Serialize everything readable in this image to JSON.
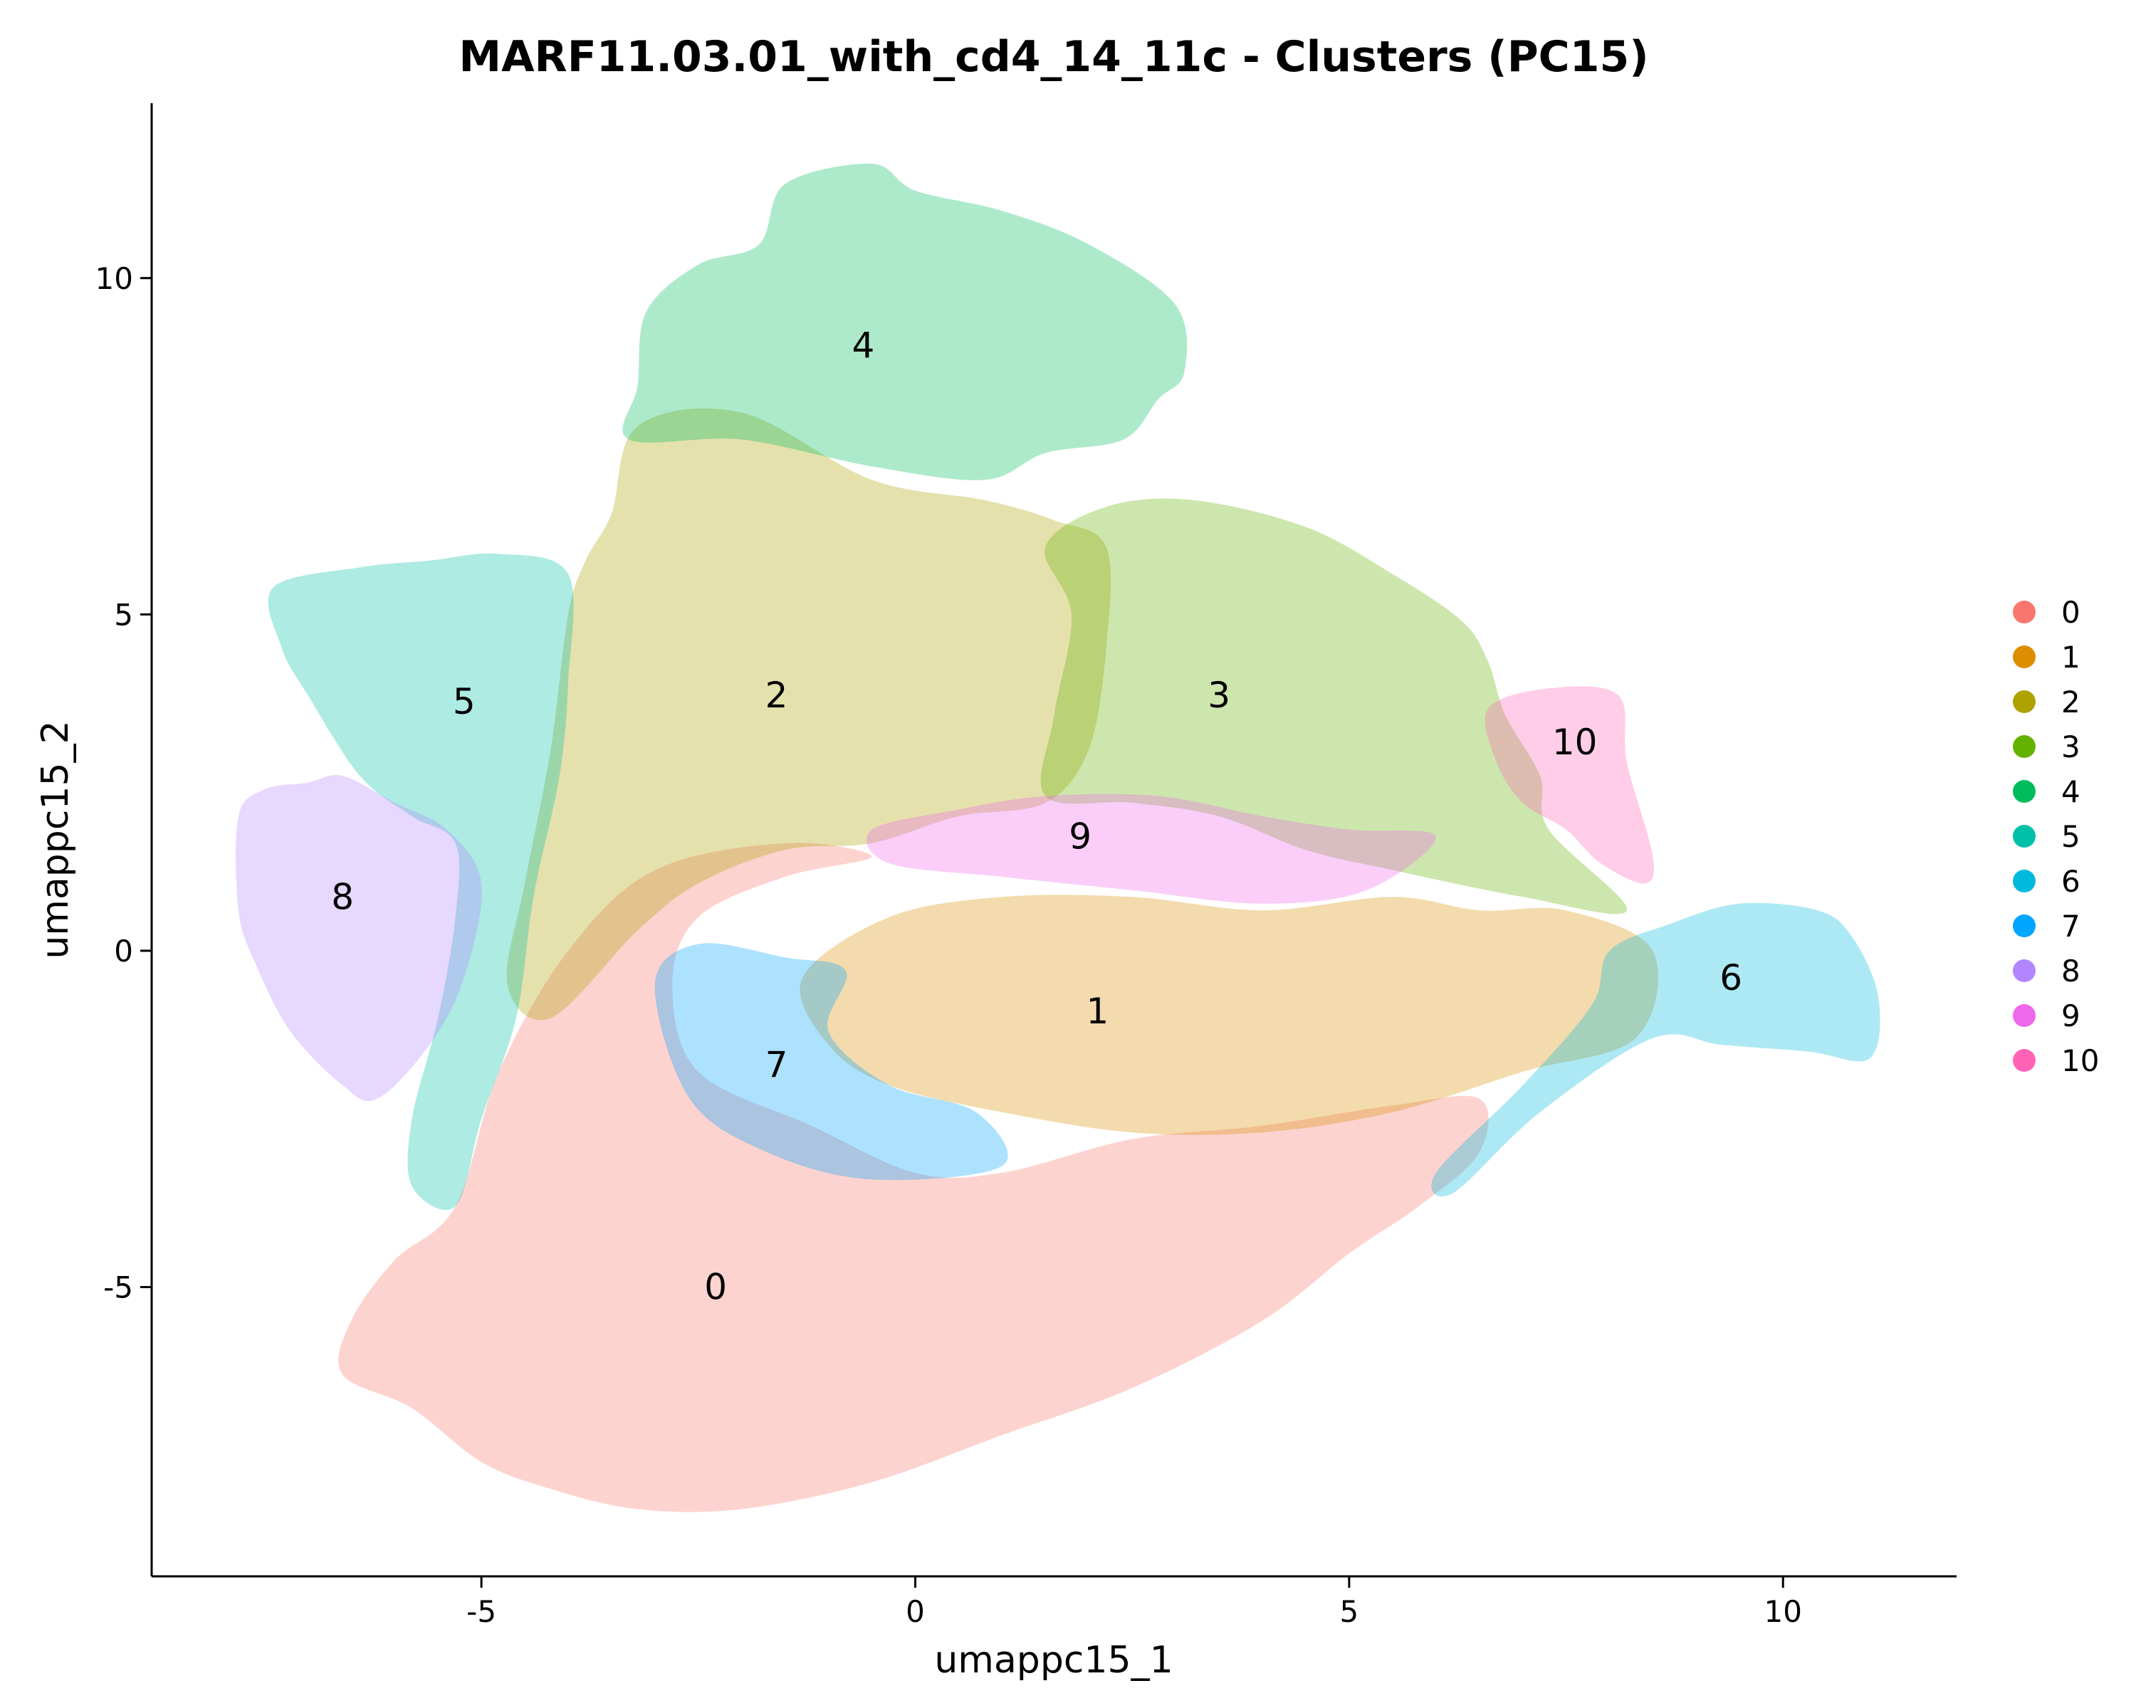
{
  "chart_data": {
    "type": "scatter",
    "title": "MARF11.03.01_with_cd4_14_11c - Clusters (PC15)",
    "xlabel": "umappc15_1",
    "ylabel": "umappc15_2",
    "xlim": [
      -8.8,
      12.0
    ],
    "ylim": [
      -9.3,
      12.6
    ],
    "x_ticks": [
      -5,
      0,
      5,
      10
    ],
    "x_tick_labels": [
      "-5",
      "0",
      "5",
      "10"
    ],
    "y_ticks": [
      -5,
      0,
      5,
      10
    ],
    "y_tick_labels": [
      "-5",
      "0",
      "5",
      "10"
    ],
    "grid": false,
    "legend_position": "right",
    "point_alpha": 0.3,
    "series": [
      {
        "name": "0",
        "color": "#F8766D",
        "label_position": [
          -2.3,
          -5.0
        ],
        "label": "0",
        "outline": [
          [
            -6.5,
            -5.5
          ],
          [
            -6.6,
            -6.3
          ],
          [
            -5.8,
            -6.8
          ],
          [
            -5.0,
            -7.6
          ],
          [
            -4.2,
            -8.0
          ],
          [
            -3.2,
            -8.3
          ],
          [
            -2.0,
            -8.3
          ],
          [
            -0.5,
            -7.9
          ],
          [
            1.0,
            -7.2
          ],
          [
            2.5,
            -6.5
          ],
          [
            4.0,
            -5.5
          ],
          [
            5.0,
            -4.5
          ],
          [
            5.8,
            -3.8
          ],
          [
            6.5,
            -3.0
          ],
          [
            6.5,
            -2.2
          ],
          [
            5.5,
            -2.3
          ],
          [
            4.0,
            -2.6
          ],
          [
            2.5,
            -2.8
          ],
          [
            1.0,
            -3.3
          ],
          [
            0.0,
            -3.3
          ],
          [
            -1.2,
            -2.6
          ],
          [
            -2.5,
            -1.8
          ],
          [
            -2.8,
            -0.5
          ],
          [
            -2.5,
            0.5
          ],
          [
            -1.5,
            1.1
          ],
          [
            -0.5,
            1.4
          ],
          [
            -1.5,
            1.6
          ],
          [
            -3.0,
            1.2
          ],
          [
            -4.0,
            0.0
          ],
          [
            -4.8,
            -1.8
          ],
          [
            -5.3,
            -3.8
          ],
          [
            -6.0,
            -4.6
          ]
        ]
      },
      {
        "name": "1",
        "color": "#DB8E00",
        "label_position": [
          2.1,
          -0.9
        ],
        "label": "1",
        "outline": [
          [
            -1.3,
            -0.4
          ],
          [
            -0.3,
            0.5
          ],
          [
            1.0,
            0.8
          ],
          [
            2.5,
            0.8
          ],
          [
            4.0,
            0.6
          ],
          [
            5.5,
            0.8
          ],
          [
            6.5,
            0.6
          ],
          [
            7.5,
            0.6
          ],
          [
            8.5,
            0.0
          ],
          [
            8.3,
            -1.3
          ],
          [
            7.0,
            -1.8
          ],
          [
            5.5,
            -2.4
          ],
          [
            4.0,
            -2.7
          ],
          [
            2.5,
            -2.7
          ],
          [
            1.0,
            -2.4
          ],
          [
            -0.3,
            -2.0
          ],
          [
            -1.0,
            -1.4
          ]
        ]
      },
      {
        "name": "2",
        "color": "#AEA200",
        "label_position": [
          -1.6,
          3.8
        ],
        "label": "2",
        "outline": [
          [
            -3.5,
            6.5
          ],
          [
            -3.2,
            7.8
          ],
          [
            -2.0,
            8.0
          ],
          [
            -0.5,
            7.0
          ],
          [
            0.8,
            6.7
          ],
          [
            1.6,
            6.4
          ],
          [
            2.2,
            6.0
          ],
          [
            2.2,
            4.5
          ],
          [
            2.0,
            3.0
          ],
          [
            1.5,
            2.2
          ],
          [
            0.5,
            2.0
          ],
          [
            -0.5,
            1.6
          ],
          [
            -1.5,
            1.5
          ],
          [
            -2.5,
            1.0
          ],
          [
            -3.2,
            0.3
          ],
          [
            -4.2,
            -1.0
          ],
          [
            -4.7,
            -0.5
          ],
          [
            -4.5,
            1.0
          ],
          [
            -4.2,
            3.0
          ],
          [
            -4.0,
            5.0
          ],
          [
            -3.8,
            5.8
          ]
        ]
      },
      {
        "name": "3",
        "color": "#64B200",
        "label_position": [
          3.5,
          3.8
        ],
        "label": "3",
        "outline": [
          [
            1.5,
            6.0
          ],
          [
            2.2,
            6.6
          ],
          [
            3.2,
            6.7
          ],
          [
            4.5,
            6.3
          ],
          [
            5.5,
            5.6
          ],
          [
            6.3,
            4.9
          ],
          [
            6.6,
            4.3
          ],
          [
            6.8,
            3.5
          ],
          [
            7.2,
            2.6
          ],
          [
            7.3,
            1.8
          ],
          [
            8.2,
            0.6
          ],
          [
            7.0,
            0.8
          ],
          [
            5.5,
            1.2
          ],
          [
            4.5,
            1.5
          ],
          [
            3.5,
            2.0
          ],
          [
            2.5,
            2.2
          ],
          [
            1.5,
            2.3
          ],
          [
            1.6,
            3.5
          ],
          [
            1.8,
            5.0
          ]
        ]
      },
      {
        "name": "4",
        "color": "#00BD5C",
        "label_position": [
          -0.6,
          9.0
        ],
        "label": "4",
        "outline": [
          [
            -3.1,
            9.5
          ],
          [
            -3.2,
            8.4
          ],
          [
            -3.3,
            7.6
          ],
          [
            -2.0,
            7.6
          ],
          [
            -0.5,
            7.2
          ],
          [
            0.8,
            7.0
          ],
          [
            1.5,
            7.4
          ],
          [
            2.4,
            7.6
          ],
          [
            2.8,
            8.2
          ],
          [
            3.1,
            8.6
          ],
          [
            3.0,
            9.6
          ],
          [
            2.0,
            10.5
          ],
          [
            1.0,
            11.0
          ],
          [
            0.0,
            11.3
          ],
          [
            -0.5,
            11.7
          ],
          [
            -1.5,
            11.4
          ],
          [
            -1.8,
            10.5
          ],
          [
            -2.5,
            10.2
          ]
        ]
      },
      {
        "name": "5",
        "color": "#00C1A7",
        "label_position": [
          -5.2,
          3.7
        ],
        "label": "5",
        "outline": [
          [
            -7.4,
            5.4
          ],
          [
            -7.3,
            4.5
          ],
          [
            -7.0,
            3.8
          ],
          [
            -6.4,
            2.6
          ],
          [
            -5.8,
            2.0
          ],
          [
            -5.3,
            1.6
          ],
          [
            -5.3,
            0.5
          ],
          [
            -5.5,
            -1.0
          ],
          [
            -5.8,
            -2.5
          ],
          [
            -5.8,
            -3.5
          ],
          [
            -5.3,
            -3.8
          ],
          [
            -5.0,
            -2.5
          ],
          [
            -4.6,
            -1.0
          ],
          [
            -4.4,
            0.8
          ],
          [
            -4.1,
            2.6
          ],
          [
            -4.0,
            4.0
          ],
          [
            -4.0,
            5.6
          ],
          [
            -4.8,
            5.9
          ],
          [
            -5.6,
            5.8
          ],
          [
            -6.4,
            5.7
          ]
        ]
      },
      {
        "name": "6",
        "color": "#00BADE",
        "label_position": [
          9.4,
          -0.4
        ],
        "label": "6",
        "outline": [
          [
            8.0,
            0.0
          ],
          [
            8.7,
            0.4
          ],
          [
            9.5,
            0.7
          ],
          [
            10.4,
            0.6
          ],
          [
            10.8,
            0.2
          ],
          [
            11.1,
            -0.7
          ],
          [
            11.0,
            -1.6
          ],
          [
            10.3,
            -1.5
          ],
          [
            9.3,
            -1.4
          ],
          [
            8.5,
            -1.3
          ],
          [
            7.2,
            -2.4
          ],
          [
            6.2,
            -3.6
          ],
          [
            6.0,
            -3.3
          ],
          [
            7.0,
            -2.0
          ],
          [
            7.8,
            -0.8
          ]
        ]
      },
      {
        "name": "7",
        "color": "#00A6FF",
        "label_position": [
          -1.6,
          -1.7
        ],
        "label": "7",
        "outline": [
          [
            -3.0,
            -0.5
          ],
          [
            -2.5,
            0.1
          ],
          [
            -1.5,
            -0.1
          ],
          [
            -0.8,
            -0.3
          ],
          [
            -1.0,
            -1.2
          ],
          [
            -0.3,
            -2.0
          ],
          [
            0.7,
            -2.4
          ],
          [
            1.0,
            -3.2
          ],
          [
            -0.5,
            -3.4
          ],
          [
            -1.7,
            -3.0
          ],
          [
            -2.6,
            -2.2
          ]
        ]
      },
      {
        "name": "8",
        "color": "#B385FF",
        "label_position": [
          -6.6,
          0.8
        ],
        "label": "8",
        "outline": [
          [
            -7.8,
            2.0
          ],
          [
            -7.5,
            2.4
          ],
          [
            -7.0,
            2.5
          ],
          [
            -6.6,
            2.6
          ],
          [
            -6.0,
            2.2
          ],
          [
            -5.4,
            1.8
          ],
          [
            -5.0,
            1.0
          ],
          [
            -5.2,
            -0.4
          ],
          [
            -5.6,
            -1.4
          ],
          [
            -6.2,
            -2.2
          ],
          [
            -6.6,
            -2.0
          ],
          [
            -7.2,
            -1.2
          ],
          [
            -7.6,
            -0.2
          ],
          [
            -7.8,
            0.6
          ]
        ]
      },
      {
        "name": "9",
        "color": "#EF67EB",
        "label_position": [
          1.9,
          1.7
        ],
        "label": "9",
        "outline": [
          [
            -0.5,
            1.8
          ],
          [
            0.5,
            2.1
          ],
          [
            1.5,
            2.3
          ],
          [
            2.8,
            2.3
          ],
          [
            4.0,
            2.0
          ],
          [
            5.0,
            1.8
          ],
          [
            6.0,
            1.7
          ],
          [
            5.2,
            0.9
          ],
          [
            4.0,
            0.7
          ],
          [
            2.5,
            0.9
          ],
          [
            1.0,
            1.1
          ],
          [
            -0.3,
            1.3
          ]
        ]
      },
      {
        "name": "10",
        "color": "#FF63B6",
        "label_position": [
          7.6,
          3.1
        ],
        "label": "10",
        "outline": [
          [
            6.6,
            3.6
          ],
          [
            7.3,
            3.9
          ],
          [
            8.1,
            3.8
          ],
          [
            8.2,
            2.8
          ],
          [
            8.5,
            1.4
          ],
          [
            8.4,
            1.0
          ],
          [
            7.9,
            1.3
          ],
          [
            7.5,
            1.8
          ],
          [
            7.0,
            2.2
          ],
          [
            6.7,
            2.8
          ]
        ]
      }
    ]
  }
}
